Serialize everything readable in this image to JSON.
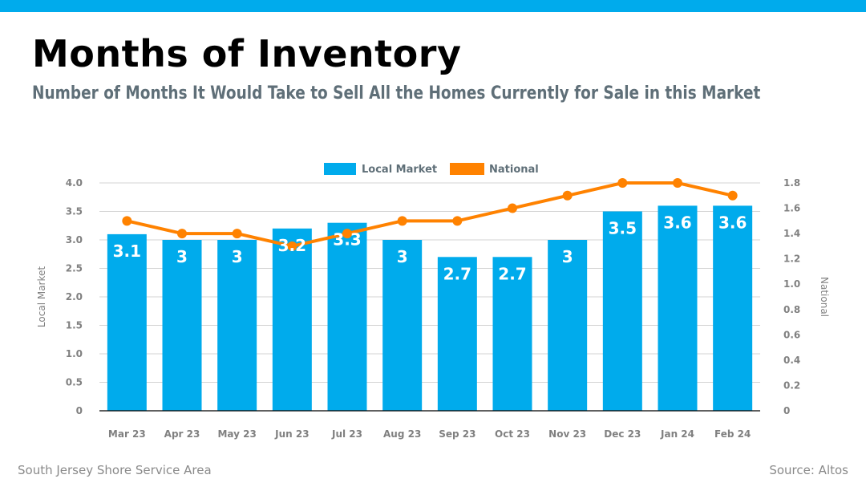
{
  "header": {
    "title": "Months of Inventory",
    "subtitle": "Number of Months It Would Take to Sell All the Homes Currently for Sale in this Market"
  },
  "footer": {
    "region": "South Jersey Shore Service Area",
    "source": "Source: Altos"
  },
  "colors": {
    "accent_bar": "#00abec",
    "local": "#00abec",
    "national": "#ff8200",
    "grid": "#d3d3d3",
    "tick": "#808080"
  },
  "chart_data": {
    "type": "bar",
    "categories": [
      "Mar 23",
      "Apr 23",
      "May 23",
      "Jun 23",
      "Jul 23",
      "Aug 23",
      "Sep 23",
      "Oct 23",
      "Nov 23",
      "Dec 23",
      "Jan 24",
      "Feb 24"
    ],
    "series": [
      {
        "name": "Local Market",
        "type": "bar",
        "axis": "left",
        "values": [
          3.1,
          3,
          3,
          3.2,
          3.3,
          3,
          2.7,
          2.7,
          3,
          3.5,
          3.6,
          3.6
        ],
        "labels": [
          "3.1",
          "3",
          "3",
          "3.2",
          "3.3",
          "3",
          "2.7",
          "2.7",
          "3",
          "3.5",
          "3.6",
          "3.6"
        ]
      },
      {
        "name": "National",
        "type": "line",
        "axis": "right",
        "values": [
          1.5,
          1.4,
          1.4,
          1.3,
          1.4,
          1.5,
          1.5,
          1.6,
          1.7,
          1.8,
          1.8,
          1.7
        ]
      }
    ],
    "ylabel": "Local Market",
    "y2label": "National",
    "ylim": [
      0,
      4
    ],
    "y2lim": [
      0,
      1.8
    ],
    "yticks": [
      "0",
      "0.5",
      "1.0",
      "1.5",
      "2.0",
      "2.5",
      "3.0",
      "3.5",
      "4.0"
    ],
    "y2ticks": [
      "0",
      "0.2",
      "0.4",
      "0.6",
      "0.8",
      "1.0",
      "1.2",
      "1.4",
      "1.6",
      "1.8"
    ],
    "grid": true,
    "legend": "top-center"
  }
}
